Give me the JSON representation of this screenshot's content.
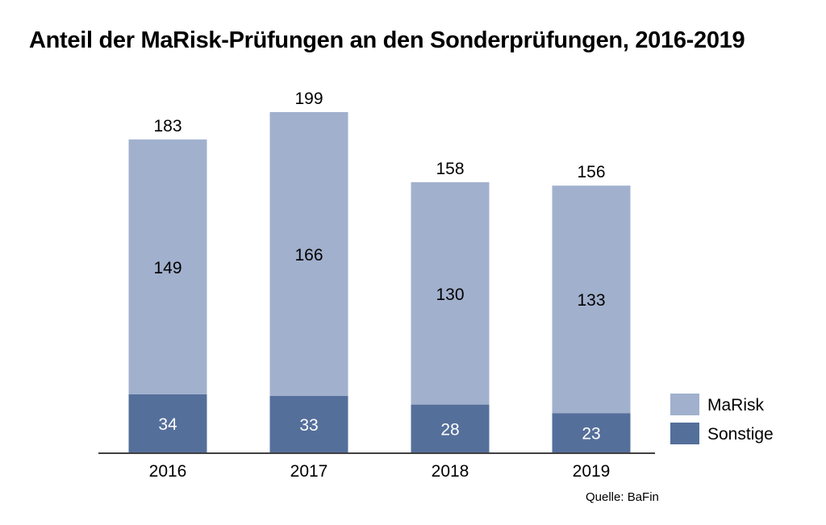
{
  "chart_data": {
    "type": "bar",
    "stacked": true,
    "title": "Anteil der MaRisk-Prüfungen an den Sonderprüfungen, 2016-2019",
    "xlabel": "",
    "ylabel": "",
    "categories": [
      "2016",
      "2017",
      "2018",
      "2019"
    ],
    "series": [
      {
        "name": "Sonstige",
        "values": [
          34,
          33,
          28,
          23
        ],
        "color": "#556f9b",
        "label_color": "#ffffff"
      },
      {
        "name": "MaRisk",
        "values": [
          149,
          166,
          130,
          133
        ],
        "color": "#a1b0cd",
        "label_color": "#000000"
      }
    ],
    "totals": [
      "183",
      "199",
      "158",
      "156"
    ],
    "ylim": [
      0,
      199
    ],
    "grid": false,
    "y_axis_visible": false,
    "legend": {
      "position": "right",
      "order": [
        "MaRisk",
        "Sonstige"
      ]
    },
    "source": "Quelle: BaFin"
  }
}
